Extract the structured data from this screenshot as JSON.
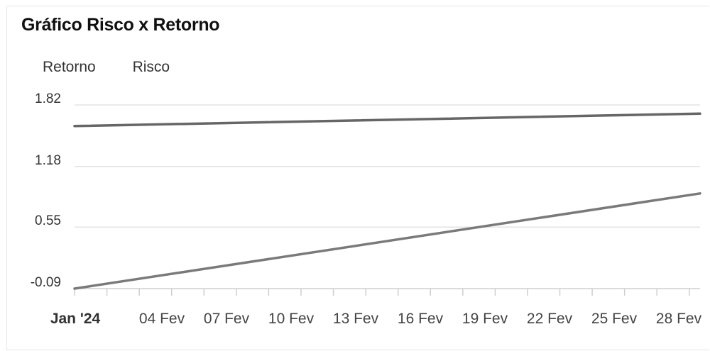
{
  "header": {
    "title": "Gráfico Risco x Retorno"
  },
  "legend": {
    "items": [
      "Retorno",
      "Risco"
    ]
  },
  "chart_data": {
    "type": "line",
    "title": "Gráfico Risco x Retorno",
    "xlabel": "",
    "ylabel": "",
    "x_ticks": [
      "Jan '24",
      "04 Fev",
      "07 Fev",
      "10 Fev",
      "13 Fev",
      "16 Fev",
      "19 Fev",
      "22 Fev",
      "25 Fev",
      "28 Fev"
    ],
    "y_ticks": [
      "1.82",
      "1.18",
      "0.55",
      "-0.09"
    ],
    "ylim": [
      -0.09,
      1.82
    ],
    "xlim": [
      "2024-01-31",
      "2024-02-29"
    ],
    "grid": true,
    "legend_position": "top-left",
    "series": [
      {
        "name": "Retorno",
        "x": [
          "2024-01-31",
          "2024-02-29"
        ],
        "values": [
          -0.09,
          0.9
        ],
        "color": "#7a7a7a"
      },
      {
        "name": "Risco",
        "x": [
          "2024-01-31",
          "2024-02-29"
        ],
        "values": [
          1.6,
          1.73
        ],
        "color": "#666666"
      }
    ]
  }
}
